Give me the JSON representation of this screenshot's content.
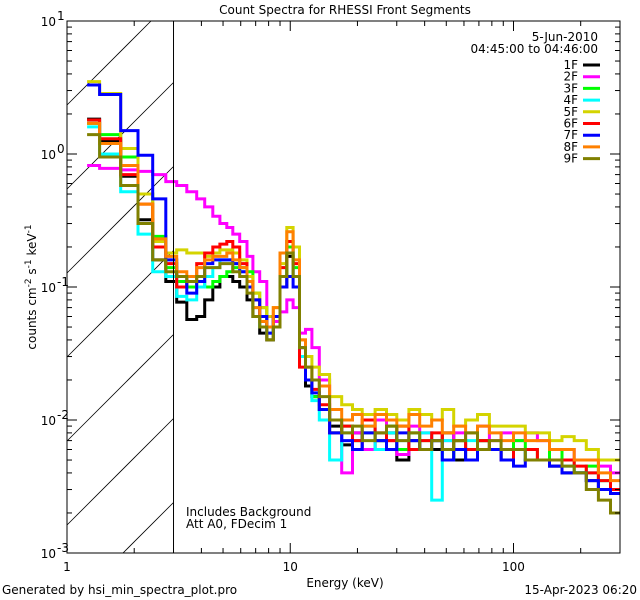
{
  "chart_data": {
    "type": "line",
    "title": "Count Spectra for RHESSI Front Segments",
    "xlabel": "Energy (keV)",
    "ylabel": "counts cm-2 s-1 keV-1",
    "xscale": "log",
    "yscale": "log",
    "xlim": [
      1,
      300
    ],
    "ylim": [
      0.001,
      10
    ],
    "x_ticks": [
      {
        "value": 1,
        "label": "1"
      },
      {
        "value": 10,
        "label": "10"
      },
      {
        "value": 100,
        "label": "100"
      }
    ],
    "y_ticks": [
      {
        "value": 10,
        "base": "10",
        "exp": "1"
      },
      {
        "value": 1,
        "base": "10",
        "exp": "0"
      },
      {
        "value": 0.1,
        "base": "10",
        "exp": "-1"
      },
      {
        "value": 0.01,
        "base": "10",
        "exp": "-2"
      },
      {
        "value": 0.001,
        "base": "10",
        "exp": "-3"
      }
    ],
    "legend_placement": "top-right",
    "legend_header": [
      "5-Jun-2010",
      "04:45:00 to 04:46:00"
    ],
    "excluded_region": {
      "from": 1,
      "to": 3,
      "style": "hatched"
    },
    "annotations": [
      "Includes Background",
      "Att A0, FDecim 1"
    ],
    "energy_edges": [
      1.23,
      1.4,
      1.74,
      2.08,
      2.42,
      2.77,
      3.1,
      3.44,
      3.81,
      4.14,
      4.5,
      4.84,
      5.2,
      5.53,
      5.94,
      6.4,
      6.8,
      7.3,
      7.85,
      8.4,
      9.0,
      9.65,
      10.3,
      11.0,
      11.7,
      12.5,
      13.5,
      15,
      17,
      19,
      21,
      24,
      27,
      30,
      34,
      38,
      43,
      48,
      54,
      61,
      69,
      78,
      88,
      100,
      113,
      128,
      145,
      165,
      187,
      212,
      240,
      272,
      300
    ],
    "series": [
      {
        "name": "1F",
        "color": "#000000",
        "values": [
          1.83,
          1.25,
          0.68,
          0.32,
          0.16,
          0.11,
          0.077,
          0.057,
          0.06,
          0.08,
          0.1,
          0.12,
          0.12,
          0.11,
          0.1,
          0.08,
          0.06,
          0.045,
          0.04,
          0.05,
          0.1,
          0.17,
          0.12,
          0.03,
          0.018,
          0.015,
          0.012,
          0.009,
          0.0065,
          0.008,
          0.006,
          0.007,
          0.008,
          0.005,
          0.007,
          0.006,
          0.006,
          0.008,
          0.005,
          0.006,
          0.007,
          0.006,
          0.005,
          0.006,
          0.005,
          0.005,
          0.0045,
          0.004,
          0.004,
          0.0035,
          0.003,
          0.003
        ]
      },
      {
        "name": "2F",
        "color": "#ff00ff",
        "values": [
          0.82,
          0.78,
          0.76,
          0.74,
          0.7,
          0.62,
          0.58,
          0.52,
          0.46,
          0.4,
          0.34,
          0.3,
          0.28,
          0.25,
          0.22,
          0.17,
          0.13,
          0.11,
          0.06,
          0.055,
          0.065,
          0.08,
          0.07,
          0.045,
          0.048,
          0.035,
          0.02,
          0.01,
          0.004,
          0.008,
          0.006,
          0.01,
          0.007,
          0.0055,
          0.009,
          0.008,
          0.007,
          0.007,
          0.008,
          0.006,
          0.009,
          0.007,
          0.008,
          0.007,
          0.008,
          0.007,
          0.006,
          0.006,
          0.005,
          0.005,
          0.0045,
          0.004
        ]
      },
      {
        "name": "3F",
        "color": "#00ff00",
        "values": [
          1.7,
          1.4,
          0.95,
          0.5,
          0.24,
          0.14,
          0.11,
          0.1,
          0.11,
          0.1,
          0.11,
          0.12,
          0.13,
          0.14,
          0.14,
          0.13,
          0.09,
          0.07,
          0.05,
          0.06,
          0.12,
          0.2,
          0.14,
          0.03,
          0.02,
          0.015,
          0.012,
          0.008,
          0.009,
          0.007,
          0.008,
          0.007,
          0.009,
          0.006,
          0.008,
          0.007,
          0.007,
          0.005,
          0.007,
          0.006,
          0.007,
          0.006,
          0.006,
          0.007,
          0.006,
          0.005,
          0.006,
          0.005,
          0.004,
          0.0045,
          0.0035,
          0.003
        ]
      },
      {
        "name": "4F",
        "color": "#00ffff",
        "values": [
          1.6,
          1.0,
          0.52,
          0.25,
          0.13,
          0.12,
          0.085,
          0.08,
          0.1,
          0.12,
          0.14,
          0.16,
          0.16,
          0.15,
          0.13,
          0.1,
          0.07,
          0.05,
          0.045,
          0.06,
          0.14,
          0.22,
          0.12,
          0.03,
          0.02,
          0.014,
          0.01,
          0.005,
          0.008,
          0.007,
          0.009,
          0.006,
          0.008,
          0.007,
          0.006,
          0.008,
          0.0025,
          0.007,
          0.006,
          0.007,
          0.006,
          0.006,
          0.005,
          0.006,
          0.005,
          0.005,
          0.005,
          0.0045,
          0.004,
          0.004,
          0.0035,
          0.003
        ]
      },
      {
        "name": "5F",
        "color": "#d4d400",
        "values": [
          3.5,
          2.85,
          1.1,
          0.5,
          0.22,
          0.18,
          0.19,
          0.18,
          0.18,
          0.17,
          0.18,
          0.19,
          0.19,
          0.18,
          0.16,
          0.12,
          0.09,
          0.07,
          0.06,
          0.07,
          0.15,
          0.28,
          0.2,
          0.04,
          0.03,
          0.025,
          0.022,
          0.015,
          0.013,
          0.012,
          0.011,
          0.012,
          0.011,
          0.01,
          0.012,
          0.011,
          0.01,
          0.012,
          0.009,
          0.01,
          0.011,
          0.009,
          0.009,
          0.009,
          0.008,
          0.008,
          0.007,
          0.0075,
          0.007,
          0.006,
          0.005,
          0.005
        ]
      },
      {
        "name": "6F",
        "color": "#ff0000",
        "values": [
          1.8,
          1.3,
          0.7,
          0.42,
          0.2,
          0.15,
          0.1,
          0.11,
          0.15,
          0.18,
          0.2,
          0.21,
          0.22,
          0.2,
          0.15,
          0.11,
          0.08,
          0.06,
          0.05,
          0.06,
          0.14,
          0.22,
          0.15,
          0.025,
          0.02,
          0.017,
          0.013,
          0.008,
          0.009,
          0.007,
          0.01,
          0.008,
          0.007,
          0.009,
          0.006,
          0.007,
          0.008,
          0.006,
          0.007,
          0.006,
          0.007,
          0.006,
          0.005,
          0.006,
          0.006,
          0.005,
          0.005,
          0.005,
          0.0045,
          0.004,
          0.0035,
          0.003
        ]
      },
      {
        "name": "7F",
        "color": "#0000ff",
        "values": [
          3.3,
          2.8,
          1.5,
          0.98,
          0.46,
          0.16,
          0.12,
          0.09,
          0.11,
          0.15,
          0.16,
          0.16,
          0.16,
          0.15,
          0.13,
          0.1,
          0.08,
          0.06,
          0.045,
          0.06,
          0.1,
          0.12,
          0.1,
          0.035,
          0.02,
          0.016,
          0.012,
          0.008,
          0.007,
          0.006,
          0.008,
          0.007,
          0.006,
          0.008,
          0.007,
          0.006,
          0.007,
          0.005,
          0.006,
          0.005,
          0.006,
          0.006,
          0.005,
          0.0045,
          0.005,
          0.005,
          0.0045,
          0.004,
          0.004,
          0.0035,
          0.003,
          0.0028
        ]
      },
      {
        "name": "8F",
        "color": "#ff8000",
        "values": [
          1.7,
          1.2,
          0.82,
          0.42,
          0.23,
          0.17,
          0.13,
          0.12,
          0.14,
          0.16,
          0.17,
          0.17,
          0.18,
          0.16,
          0.14,
          0.11,
          0.07,
          0.055,
          0.05,
          0.07,
          0.18,
          0.26,
          0.16,
          0.04,
          0.025,
          0.02,
          0.018,
          0.012,
          0.01,
          0.011,
          0.009,
          0.011,
          0.01,
          0.009,
          0.011,
          0.009,
          0.01,
          0.008,
          0.009,
          0.008,
          0.009,
          0.008,
          0.007,
          0.008,
          0.007,
          0.007,
          0.006,
          0.006,
          0.005,
          0.005,
          0.004,
          0.0035
        ]
      },
      {
        "name": "9F",
        "color": "#808000",
        "values": [
          1.4,
          0.95,
          0.58,
          0.3,
          0.16,
          0.13,
          0.12,
          0.11,
          0.12,
          0.14,
          0.14,
          0.15,
          0.15,
          0.13,
          0.12,
          0.09,
          0.06,
          0.05,
          0.04,
          0.05,
          0.12,
          0.18,
          0.12,
          0.035,
          0.025,
          0.02,
          0.015,
          0.01,
          0.008,
          0.009,
          0.007,
          0.008,
          0.009,
          0.007,
          0.008,
          0.006,
          0.007,
          0.006,
          0.007,
          0.008,
          0.006,
          0.007,
          0.006,
          0.006,
          0.005,
          0.005,
          0.005,
          0.0045,
          0.004,
          0.003,
          0.0025,
          0.002
        ]
      }
    ]
  },
  "footer": {
    "generated_by": "Generated by hsi_min_spectra_plot.pro",
    "timestamp": "15-Apr-2023 06:20"
  }
}
